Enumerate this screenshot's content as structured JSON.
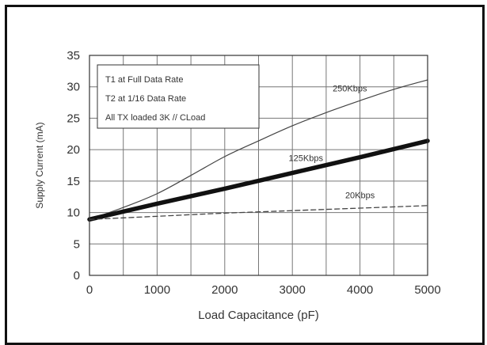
{
  "chart_data": {
    "type": "line",
    "title": "",
    "xlabel": "Load Capacitance (pF)",
    "ylabel": "Supply Current (mA)",
    "xlim": [
      0,
      5000
    ],
    "ylim": [
      0,
      35
    ],
    "x_ticks": [
      0,
      1000,
      2000,
      3000,
      4000,
      5000
    ],
    "y_ticks": [
      0,
      5,
      10,
      15,
      20,
      25,
      30,
      35
    ],
    "x_tick_labels": [
      "0",
      "1000",
      "2000",
      "3000",
      "4000",
      "5000"
    ],
    "y_tick_labels": [
      "0",
      "5",
      "10",
      "15",
      "20",
      "25",
      "30",
      "35"
    ],
    "x_minor_step": 500,
    "grid": true,
    "legend": {
      "placement": "top-left",
      "lines": [
        "T1 at Full Data Rate",
        "T2 at 1/16 Data Rate",
        "All TX loaded 3K // CLoad"
      ]
    },
    "series": [
      {
        "name": "250Kbps",
        "style": "thin",
        "color": "#444444",
        "x": [
          0,
          500,
          1000,
          1500,
          2000,
          2500,
          3000,
          3500,
          4000,
          4500,
          5000
        ],
        "y": [
          8.9,
          10.8,
          13.0,
          15.9,
          18.9,
          21.4,
          23.8,
          25.9,
          27.8,
          29.6,
          31.1
        ]
      },
      {
        "name": "125Kbps",
        "style": "thick",
        "color": "#111111",
        "x": [
          0,
          1000,
          2000,
          3000,
          4000,
          5000
        ],
        "y": [
          8.9,
          11.4,
          13.8,
          16.3,
          18.8,
          21.4
        ]
      },
      {
        "name": "20Kbps",
        "style": "dashed",
        "color": "#444444",
        "x": [
          0,
          1000,
          2000,
          3000,
          4000,
          5000
        ],
        "y": [
          8.9,
          9.4,
          9.9,
          10.3,
          10.7,
          11.1
        ]
      }
    ],
    "annotations": [
      {
        "text": "250Kbps",
        "x": 3850,
        "y": 29.3
      },
      {
        "text": "125Kbps",
        "x": 3200,
        "y": 18.2
      },
      {
        "text": "20Kbps",
        "x": 4000,
        "y": 12.3
      }
    ]
  }
}
